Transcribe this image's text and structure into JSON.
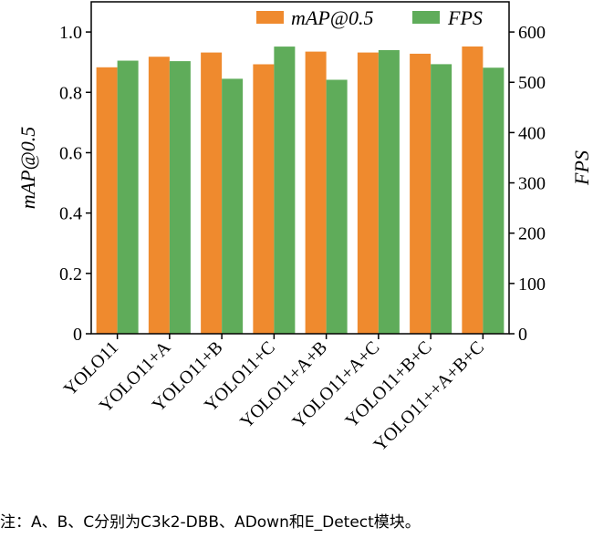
{
  "chart_data": {
    "type": "bar",
    "categories": [
      "YOLO11",
      "YOLO11+A",
      "YOLO11+B",
      "YOLO11+C",
      "YOLO11+A+B",
      "YOLO11+A+C",
      "YOLO11+B+C",
      "YOLO11++A+B+C"
    ],
    "series": [
      {
        "name": "mAP@0.5",
        "axis": "left",
        "color": "#ef8a2e",
        "values": [
          0.883,
          0.918,
          0.932,
          0.893,
          0.935,
          0.932,
          0.928,
          0.952
        ]
      },
      {
        "name": "FPS",
        "axis": "right",
        "color": "#5fac5a",
        "values": [
          543,
          542,
          507,
          571,
          505,
          564,
          536,
          529
        ]
      }
    ],
    "ylabel_left": "mAP@0.5",
    "ylabel_right": "FPS",
    "ylim_left": [
      0,
      1.1
    ],
    "ylim_right": [
      0,
      660
    ],
    "yticks_left": [
      "0",
      "0.2",
      "0.4",
      "0.6",
      "0.8",
      "1.0"
    ],
    "yticks_right": [
      "0",
      "100",
      "200",
      "300",
      "400",
      "500",
      "600"
    ],
    "legend_position": "top-right",
    "grid": false
  },
  "note": "注：A、B、C分别为C3k2-DBB、ADown和E_Detect模块。"
}
